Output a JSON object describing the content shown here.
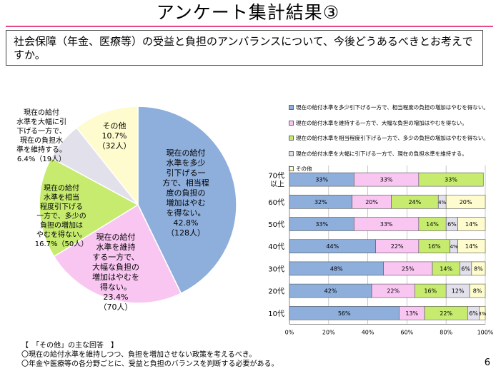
{
  "header": {
    "title": "アンケート集計結果③",
    "question": "社会保障（年金、医療等）の受益と負担のアンバランスについて、今後どうあるべきとお考えですか。"
  },
  "colors": {
    "title_rule": "#e24a8a",
    "opt1": "#8eaedb",
    "opt2": "#f9c6f2",
    "opt3": "#c6eb6e",
    "opt4": "#e2e0ea",
    "opt5": "#fefcce"
  },
  "chart_data": [
    {
      "type": "pie",
      "slices": [
        {
          "label": "現在の給付水準を多少引下げる一方で、相当程度の負担の増加はやむを得ない。",
          "percent": 42.8,
          "count": 128
        },
        {
          "label": "現在の給付水準を維持する一方で、大幅な負担の増加はやむを得ない。",
          "percent": 23.4,
          "count": 70
        },
        {
          "label": "現在の給付水準を相当程度引下げる一方で、多少の負担の増加はやむを得ない。",
          "percent": 16.7,
          "count": 50
        },
        {
          "label": "現在の給付水準を大幅に引下げる一方で、現在の負担水準を維持する。",
          "percent": 6.4,
          "count": 19
        },
        {
          "label": "その他",
          "percent": 10.7,
          "count": 32
        }
      ],
      "slice_labels": [
        {
          "lines": [
            "現在の給付",
            "水準を多少",
            "引下げる一",
            "方で、相当程",
            "度の負担の",
            "増加はやむ",
            "を得ない。",
            "42.8%",
            "（128人）"
          ]
        },
        {
          "lines": [
            "現在の給付",
            "水準を維持",
            "する一方で、",
            "大幅な負担の",
            "増加はやむを",
            "得ない。",
            "23.4%",
            "（70人）"
          ]
        },
        {
          "lines": [
            "現在の給付",
            "水準を相当",
            "程度引下げる",
            "一方で、多少の",
            "負担の増加は",
            "やむを得ない。",
            "16.7%（50人）"
          ]
        },
        {
          "lines": [
            "現在の給付",
            "水準を大幅に引",
            "下げる一方で、",
            "現在の負担水",
            "準を維持する。",
            "6.4%（19人）"
          ]
        },
        {
          "lines": [
            "その他",
            "10.7%",
            "（32人）"
          ]
        }
      ]
    },
    {
      "type": "bar",
      "stacked": true,
      "orientation": "horizontal",
      "categories": [
        "70代以上",
        "60代",
        "50代",
        "40代",
        "30代",
        "20代",
        "10代"
      ],
      "category_labels": [
        [
          "70代",
          "以上"
        ],
        [
          "60代"
        ],
        [
          "50代"
        ],
        [
          "40代"
        ],
        [
          "30代"
        ],
        [
          "20代"
        ],
        [
          "10代"
        ]
      ],
      "series": [
        {
          "name": "現在の給付水準を多少引下げる一方で、相当程度の負担の増加はやむを得ない。",
          "values": [
            33,
            32,
            33,
            44,
            48,
            42,
            56
          ]
        },
        {
          "name": "現在の給付水準を維持する一方で、大幅な負担の増加はやむを得ない。",
          "values": [
            33,
            20,
            33,
            22,
            25,
            22,
            13
          ]
        },
        {
          "name": "現在の給付水準を相当程度引下げる一方で、多少の負担の増加はやむを得ない。",
          "values": [
            33,
            24,
            14,
            16,
            14,
            16,
            22
          ]
        },
        {
          "name": "現在の給付水準を大幅に引下げる一方で、現在の負担水準を維持する。",
          "values": [
            0,
            4,
            6,
            4,
            6,
            12,
            6
          ]
        },
        {
          "name": "その他",
          "values": [
            0,
            20,
            14,
            14,
            8,
            8,
            3
          ]
        }
      ],
      "xlim": [
        0,
        100
      ],
      "x_ticks": [
        "0%",
        "20%",
        "40%",
        "60%",
        "80%",
        "100%"
      ],
      "grid": true,
      "legend_position": "top"
    }
  ],
  "notes": {
    "heading": "【　「その他」の主な回答　】",
    "items": [
      "〇現在の給付水準を維持しつつ、負担を増加させない政策を考えるべき。",
      "〇年金や医療等の各分野ごとに、受益と負担のバランスを判断する必要がある。"
    ]
  },
  "page_number": "6"
}
